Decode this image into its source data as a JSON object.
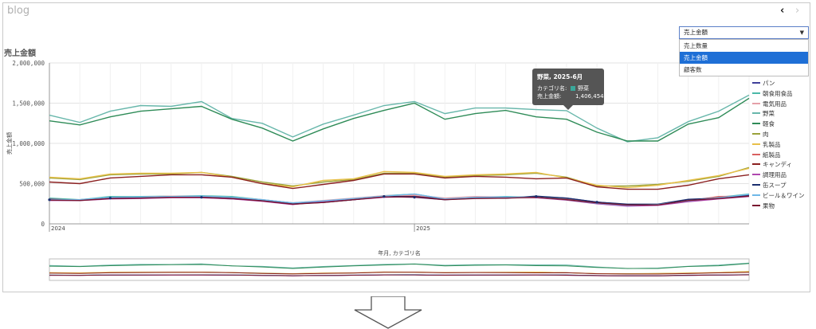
{
  "page": {
    "title": "blog",
    "nav": {
      "prev": "‹",
      "next": "›"
    }
  },
  "dropdown": {
    "selected": "売上金額",
    "options": [
      {
        "label": "売上数量",
        "selected": false
      },
      {
        "label": "売上金額",
        "selected": true
      },
      {
        "label": "顧客数",
        "selected": false
      }
    ]
  },
  "tooltip": {
    "title": "野菜, 2025-6月",
    "rows": [
      {
        "key": "カテゴリ名:",
        "value": "野菜"
      },
      {
        "key": "売上金額:",
        "value": "1,406,454"
      }
    ],
    "swatch_color": "#3aa79a"
  },
  "chart_data": {
    "type": "line",
    "title": "売上金額",
    "xlabel": "",
    "ylabel": "売上金額",
    "ylim": [
      0,
      2000000
    ],
    "yticks": [
      0,
      500000,
      1000000,
      1500000,
      2000000
    ],
    "ytick_labels": [
      "0",
      "500,000",
      "1,000,000",
      "1,500,000",
      "2,000,000"
    ],
    "x_year_labels": [
      {
        "label": "2024",
        "index": 0
      },
      {
        "label": "2025",
        "index": 12
      }
    ],
    "navigator_label": "年月, カテゴリ名",
    "legend_position": "right",
    "grid": true,
    "x": [
      "2024-1",
      "2024-2",
      "2024-3",
      "2024-4",
      "2024-5",
      "2024-6",
      "2024-7",
      "2024-8",
      "2024-9",
      "2024-10",
      "2024-11",
      "2024-12",
      "2025-1",
      "2025-2",
      "2025-3",
      "2025-4",
      "2025-5",
      "2025-6",
      "2025-7",
      "2025-8",
      "2025-9",
      "2025-10",
      "2025-11",
      "2025-12"
    ],
    "series": [
      {
        "name": "パン",
        "color": "#3f3f9a",
        "values": [
          300000,
          300000,
          320000,
          320000,
          330000,
          330000,
          310000,
          290000,
          250000,
          270000,
          300000,
          340000,
          330000,
          300000,
          320000,
          320000,
          340000,
          320000,
          270000,
          240000,
          240000,
          300000,
          320000,
          350000
        ]
      },
      {
        "name": "朝食用食品",
        "color": "#4bb8a8",
        "values": [
          320000,
          300000,
          340000,
          340000,
          345000,
          350000,
          340000,
          300000,
          260000,
          280000,
          310000,
          350000,
          370000,
          310000,
          330000,
          340000,
          330000,
          310000,
          260000,
          230000,
          240000,
          280000,
          330000,
          370000
        ]
      },
      {
        "name": "電気用品",
        "color": "#e5a0a8",
        "values": [
          310000,
          290000,
          330000,
          335000,
          345000,
          345000,
          330000,
          300000,
          260000,
          290000,
          320000,
          350000,
          360000,
          320000,
          340000,
          335000,
          330000,
          300000,
          255000,
          230000,
          235000,
          290000,
          320000,
          360000
        ]
      },
      {
        "name": "野菜",
        "color": "#68b7ab",
        "values": [
          1350000,
          1260000,
          1400000,
          1470000,
          1460000,
          1520000,
          1310000,
          1250000,
          1080000,
          1240000,
          1350000,
          1470000,
          1520000,
          1370000,
          1440000,
          1440000,
          1420000,
          1406454,
          1190000,
          1020000,
          1070000,
          1270000,
          1400000,
          1600000
        ]
      },
      {
        "name": "軽食",
        "color": "#2e8b57",
        "values": [
          1280000,
          1230000,
          1330000,
          1400000,
          1430000,
          1460000,
          1300000,
          1190000,
          1030000,
          1180000,
          1310000,
          1410000,
          1500000,
          1300000,
          1370000,
          1410000,
          1330000,
          1300000,
          1140000,
          1030000,
          1030000,
          1240000,
          1320000,
          1560000
        ]
      },
      {
        "name": "肉",
        "color": "#9aa23a",
        "values": [
          570000,
          550000,
          610000,
          620000,
          620000,
          640000,
          590000,
          520000,
          470000,
          520000,
          550000,
          630000,
          630000,
          580000,
          600000,
          610000,
          630000,
          580000,
          470000,
          470000,
          490000,
          530000,
          590000,
          700000
        ]
      },
      {
        "name": "乳製品",
        "color": "#e8c04a",
        "values": [
          580000,
          560000,
          620000,
          630000,
          630000,
          640000,
          580000,
          500000,
          460000,
          540000,
          560000,
          650000,
          640000,
          590000,
          610000,
          620000,
          640000,
          570000,
          480000,
          450000,
          480000,
          540000,
          600000,
          690000
        ]
      },
      {
        "name": "紙製品",
        "color": "#d96060",
        "values": [
          300000,
          295000,
          320000,
          325000,
          335000,
          335000,
          320000,
          295000,
          255000,
          270000,
          305000,
          340000,
          345000,
          310000,
          325000,
          330000,
          325000,
          305000,
          260000,
          235000,
          240000,
          285000,
          340000,
          345000
        ]
      },
      {
        "name": "キャンディ",
        "color": "#8b2020",
        "values": [
          520000,
          500000,
          570000,
          590000,
          610000,
          610000,
          580000,
          500000,
          440000,
          490000,
          540000,
          620000,
          620000,
          570000,
          590000,
          580000,
          560000,
          570000,
          460000,
          430000,
          430000,
          480000,
          560000,
          610000
        ]
      },
      {
        "name": "調理用品",
        "color": "#b048b0",
        "values": [
          290000,
          290000,
          310000,
          315000,
          325000,
          325000,
          310000,
          280000,
          240000,
          280000,
          300000,
          330000,
          340000,
          305000,
          320000,
          330000,
          325000,
          295000,
          250000,
          220000,
          230000,
          275000,
          310000,
          340000
        ]
      },
      {
        "name": "缶スープ",
        "color": "#1a2e6e",
        "values": [
          305000,
          295000,
          325000,
          330000,
          340000,
          340000,
          325000,
          295000,
          250000,
          265000,
          300000,
          340000,
          340000,
          305000,
          320000,
          320000,
          345000,
          320000,
          270000,
          245000,
          245000,
          305000,
          320000,
          355000
        ]
      },
      {
        "name": "ビール＆ワイン",
        "color": "#6fb8e8",
        "values": [
          300000,
          300000,
          330000,
          335000,
          340000,
          345000,
          330000,
          300000,
          260000,
          285000,
          315000,
          345000,
          370000,
          310000,
          330000,
          335000,
          330000,
          300000,
          255000,
          230000,
          240000,
          285000,
          325000,
          365000
        ]
      },
      {
        "name": "果物",
        "color": "#7a1530",
        "values": [
          295000,
          290000,
          315000,
          320000,
          330000,
          330000,
          315000,
          285000,
          245000,
          265000,
          300000,
          335000,
          335000,
          300000,
          315000,
          320000,
          330000,
          300000,
          260000,
          235000,
          235000,
          290000,
          315000,
          345000
        ]
      }
    ]
  }
}
